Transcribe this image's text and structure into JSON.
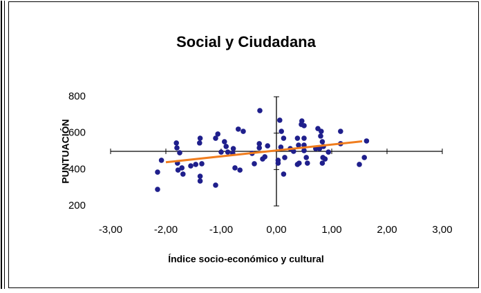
{
  "chart_data": {
    "type": "scatter",
    "title": "Social y Ciudadana",
    "x_label": "Índice socio-económico y cultural",
    "y_label": "PUNTUACIÓN",
    "xlim": [
      -3,
      3
    ],
    "ylim": [
      200,
      800
    ],
    "xticks": [
      {
        "value": -3,
        "label": "-3,00"
      },
      {
        "value": -2,
        "label": "-2,00"
      },
      {
        "value": -1,
        "label": "-1,00"
      },
      {
        "value": 0,
        "label": "0,00"
      },
      {
        "value": 1,
        "label": "1,00"
      },
      {
        "value": 2,
        "label": "2,00"
      },
      {
        "value": 3,
        "label": "3,00"
      }
    ],
    "yticks": [
      200,
      400,
      600,
      800
    ],
    "color": "#1f1f8c",
    "x": [
      -2.15,
      -2.15,
      -2.08,
      -1.81,
      -1.8,
      -1.75,
      -1.79,
      -1.78,
      -1.71,
      -1.69,
      -1.55,
      -1.46,
      -1.39,
      -1.38,
      -1.35,
      -1.38,
      -1.38,
      -1.1,
      -1.06,
      -1.1,
      -1.0,
      -0.94,
      -0.91,
      -0.88,
      -0.79,
      -0.78,
      -0.69,
      -0.6,
      -0.75,
      -0.66,
      -0.44,
      -0.4,
      -0.31,
      -0.31,
      -0.3,
      -0.25,
      -0.21,
      -0.16,
      0.03,
      0.03,
      0.08,
      0.06,
      0.09,
      0.13,
      0.15,
      0.13,
      0.25,
      0.31,
      0.38,
      0.4,
      0.38,
      0.41,
      0.45,
      0.46,
      0.5,
      0.5,
      0.5,
      0.5,
      0.54,
      0.56,
      0.71,
      0.78,
      0.75,
      0.81,
      0.8,
      0.83,
      0.85,
      0.84,
      0.83,
      0.88,
      0.94,
      1.16,
      1.16,
      1.5,
      1.59,
      1.63
    ],
    "y": [
      291,
      386,
      451,
      546,
      519,
      492,
      435,
      397,
      409,
      375,
      420,
      428,
      546,
      572,
      432,
      363,
      337,
      572,
      595,
      314,
      496,
      553,
      527,
      496,
      489,
      515,
      622,
      610,
      409,
      397,
      489,
      432,
      542,
      519,
      724,
      458,
      470,
      530,
      451,
      435,
      523,
      671,
      610,
      572,
      466,
      375,
      515,
      500,
      572,
      534,
      428,
      435,
      648,
      667,
      641,
      572,
      534,
      504,
      466,
      435,
      515,
      515,
      625,
      610,
      584,
      553,
      527,
      466,
      435,
      458,
      496,
      610,
      542,
      428,
      466,
      557
    ],
    "trendline": {
      "color": "#f07d1e",
      "x": [
        -2,
        1.55
      ],
      "y": [
        440,
        555
      ]
    }
  }
}
